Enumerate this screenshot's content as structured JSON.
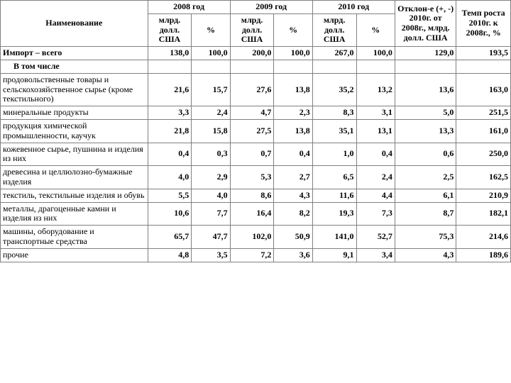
{
  "header": {
    "name": "Наименование",
    "y2008": "2008 год",
    "y2009": "2009 год",
    "y2010": "2010 год",
    "dev": "Отклон-е (+, -) 2010г. от 2008г., млрд. долл. США",
    "temp": "Темп роста 2010г. к 2008г., %",
    "sub_val": "млрд. долл. США",
    "sub_pct": "%"
  },
  "rows": {
    "r0": {
      "label": "Импорт – всего",
      "v08": "138,0",
      "p08": "100,0",
      "v09": "200,0",
      "p09": "100,0",
      "v10": "267,0",
      "p10": "100,0",
      "dev": "129,0",
      "temp": "193,5"
    },
    "r1": {
      "label": "В том числе"
    },
    "r2": {
      "label": "продовольственные товары и сельскохозяйственное сырье (кроме текстильного)",
      "v08": "21,6",
      "p08": "15,7",
      "v09": "27,6",
      "p09": "13,8",
      "v10": "35,2",
      "p10": "13,2",
      "dev": "13,6",
      "temp": "163,0"
    },
    "r3": {
      "label": "минеральные продукты",
      "v08": "3,3",
      "p08": "2,4",
      "v09": "4,7",
      "p09": "2,3",
      "v10": "8,3",
      "p10": "3,1",
      "dev": "5,0",
      "temp": "251,5"
    },
    "r4": {
      "label": "продукция химической промышленности, каучук",
      "v08": "21,8",
      "p08": "15,8",
      "v09": "27,5",
      "p09": "13,8",
      "v10": "35,1",
      "p10": "13,1",
      "dev": "13,3",
      "temp": "161,0"
    },
    "r5": {
      "label": "кожевенное сырье, пушнина и изделия из них",
      "v08": "0,4",
      "p08": "0,3",
      "v09": "0,7",
      "p09": "0,4",
      "v10": "1,0",
      "p10": "0,4",
      "dev": "0,6",
      "temp": "250,0"
    },
    "r6": {
      "label": "древесина и целлюлозно-бумажные изделия",
      "v08": "4,0",
      "p08": "2,9",
      "v09": "5,3",
      "p09": "2,7",
      "v10": "6,5",
      "p10": "2,4",
      "dev": "2,5",
      "temp": "162,5"
    },
    "r7": {
      "label": "текстиль, текстильные изделия и обувь",
      "v08": "5,5",
      "p08": "4,0",
      "v09": "8,6",
      "p09": "4,3",
      "v10": "11,6",
      "p10": "4,4",
      "dev": "6,1",
      "temp": "210,9"
    },
    "r8": {
      "label": "металлы, драгоценные камни и изделия из них",
      "v08": "10,6",
      "p08": "7,7",
      "v09": "16,4",
      "p09": "8,2",
      "v10": "19,3",
      "p10": "7,3",
      "dev": "8,7",
      "temp": "182,1"
    },
    "r9": {
      "label": "машины, оборудование и транспортные средства",
      "v08": "65,7",
      "p08": "47,7",
      "v09": "102,0",
      "p09": "50,9",
      "v10": "141,0",
      "p10": "52,7",
      "dev": "75,3",
      "temp": "214,6"
    },
    "r10": {
      "label": "прочие",
      "v08": "4,8",
      "p08": "3,5",
      "v09": "7,2",
      "p09": "3,6",
      "v10": "9,1",
      "p10": "3,4",
      "dev": "4,3",
      "temp": "189,6"
    }
  }
}
